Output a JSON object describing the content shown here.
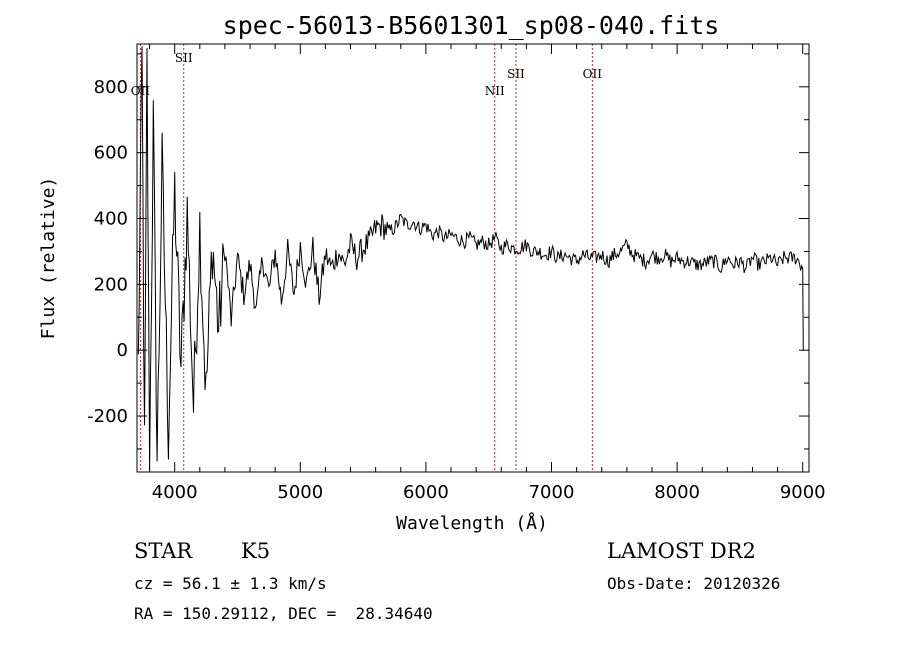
{
  "chart_data": {
    "type": "line",
    "title": "spec-56013-B5601301_sp08-040.fits",
    "xlabel": "Wavelength (Å)",
    "ylabel": "Flux (relative)",
    "xlim": [
      3700,
      9050
    ],
    "ylim": [
      -370,
      930
    ],
    "xticks": [
      4000,
      5000,
      6000,
      7000,
      8000,
      9000
    ],
    "yticks": [
      -200,
      0,
      200,
      400,
      600,
      800
    ],
    "series": [
      {
        "name": "spectrum",
        "x": [
          3710,
          3740,
          3760,
          3780,
          3800,
          3830,
          3860,
          3900,
          3950,
          4000,
          4050,
          4100,
          4150,
          4200,
          4250,
          4300,
          4350,
          4400,
          4450,
          4500,
          4550,
          4600,
          4650,
          4700,
          4750,
          4800,
          4850,
          4900,
          4950,
          5000,
          5050,
          5100,
          5150,
          5200,
          5250,
          5300,
          5350,
          5400,
          5450,
          5500,
          5550,
          5600,
          5650,
          5700,
          5750,
          5800,
          5850,
          5900,
          5950,
          6000,
          6050,
          6100,
          6150,
          6200,
          6250,
          6300,
          6350,
          6400,
          6450,
          6500,
          6550,
          6600,
          6650,
          6700,
          6750,
          6800,
          6850,
          6900,
          6950,
          7000,
          7050,
          7100,
          7150,
          7200,
          7250,
          7300,
          7350,
          7400,
          7450,
          7500,
          7550,
          7600,
          7650,
          7700,
          7750,
          7800,
          7850,
          7900,
          7950,
          8000,
          8050,
          8100,
          8150,
          8200,
          8250,
          8300,
          8350,
          8400,
          8450,
          8500,
          8550,
          8600,
          8650,
          8700,
          8750,
          8800,
          8850,
          8900,
          8950,
          9000,
          9005
        ],
        "values": [
          -50,
          880,
          -320,
          860,
          -350,
          690,
          -330,
          560,
          -250,
          480,
          -60,
          420,
          -170,
          380,
          -140,
          330,
          60,
          310,
          90,
          280,
          170,
          260,
          120,
          280,
          180,
          300,
          150,
          300,
          170,
          320,
          200,
          310,
          160,
          290,
          250,
          300,
          260,
          320,
          280,
          310,
          330,
          370,
          380,
          360,
          370,
          400,
          380,
          390,
          370,
          380,
          350,
          360,
          340,
          350,
          340,
          330,
          340,
          320,
          330,
          320,
          340,
          310,
          320,
          310,
          310,
          320,
          300,
          300,
          290,
          300,
          280,
          290,
          280,
          270,
          290,
          280,
          280,
          290,
          270,
          290,
          300,
          320,
          290,
          280,
          270,
          290,
          280,
          290,
          270,
          280,
          270,
          270,
          260,
          260,
          270,
          270,
          250,
          280,
          260,
          270,
          250,
          280,
          260,
          270,
          280,
          260,
          280,
          280,
          280,
          250,
          0
        ]
      }
    ],
    "emission_lines": [
      {
        "label": "OII",
        "x": 3727
      },
      {
        "label": "SII",
        "x": 4072
      },
      {
        "label": "NII",
        "x": 6548
      },
      {
        "label": "SII",
        "x": 6717
      },
      {
        "label": "OII",
        "x": 7325
      }
    ]
  },
  "info": {
    "class": "STAR",
    "subclass": "K5",
    "survey": "LAMOST DR2",
    "cz": "cz = 56.1 ± 1.3 km/s",
    "obs_date": "Obs-Date: 20120326",
    "coords": "RA = 150.29112, DEC =  28.34640"
  },
  "colors": {
    "spectrum": "#000000",
    "emission_line": "#b03030",
    "axis": "#000000"
  }
}
